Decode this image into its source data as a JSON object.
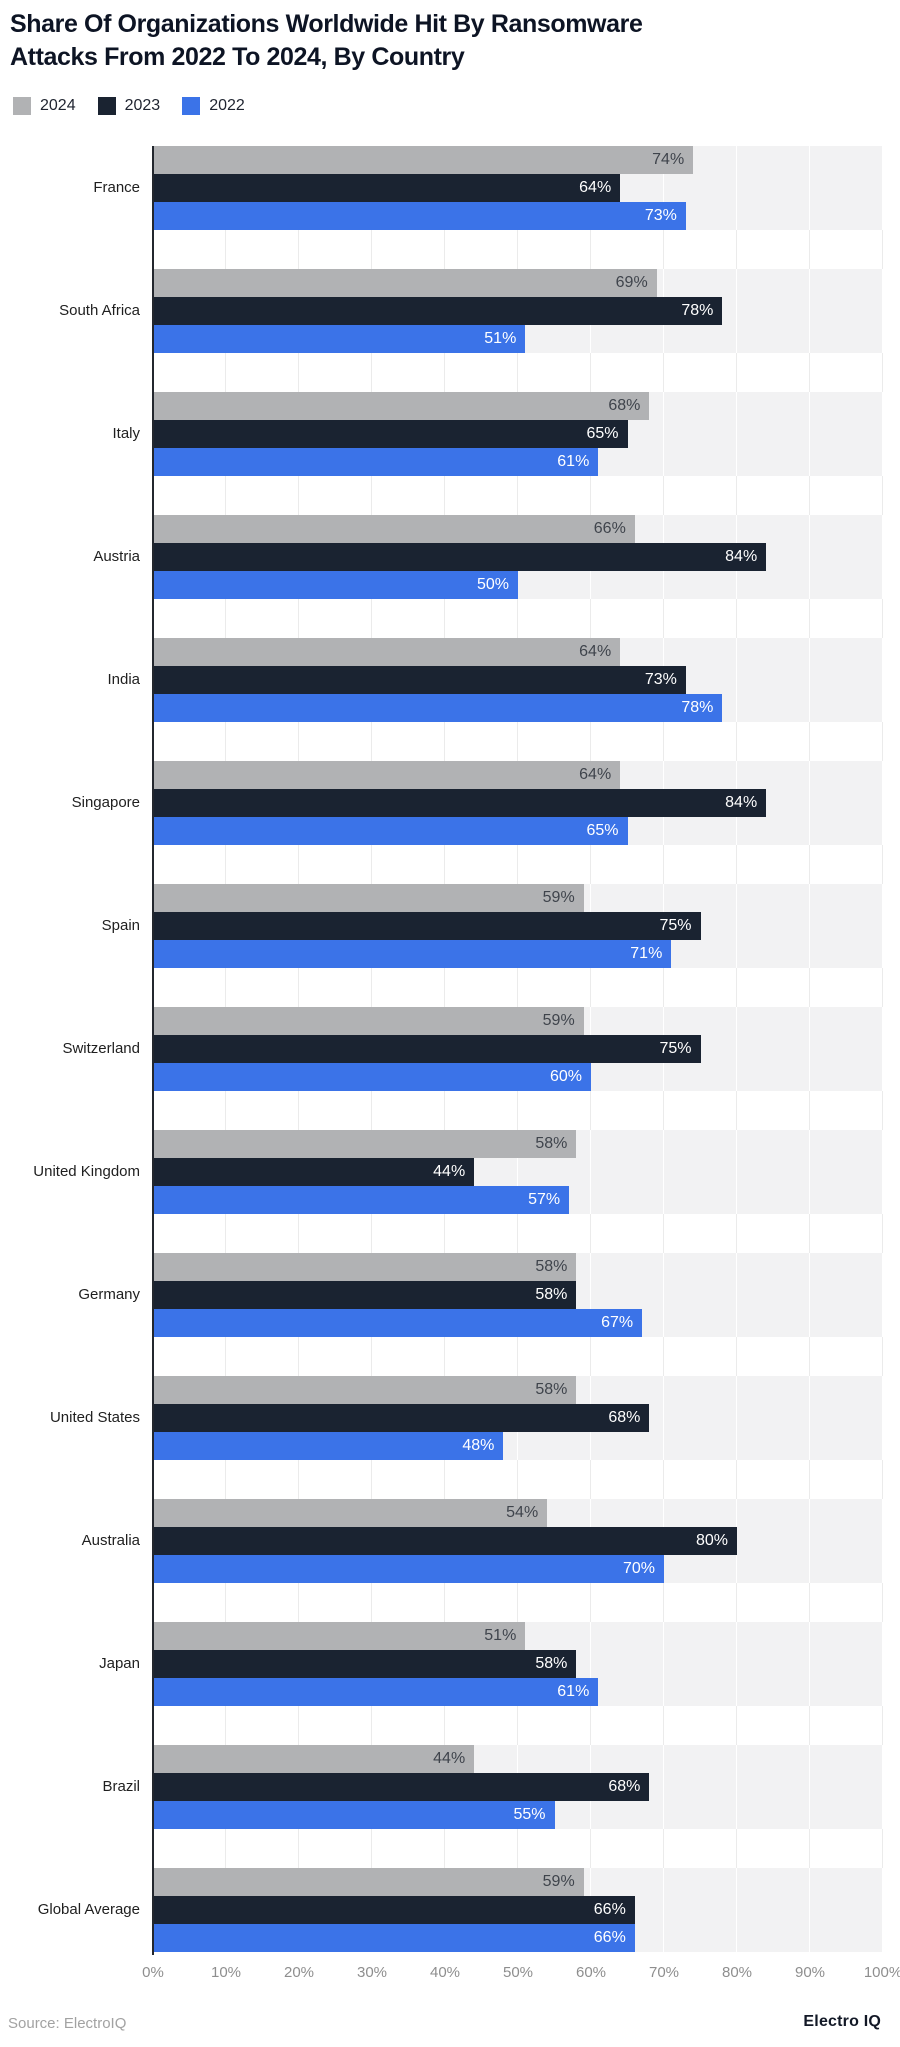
{
  "title_lines": [
    "Share Of Organizations Worldwide Hit By Ransomware",
    "Attacks From 2022 To 2024, By Country"
  ],
  "legend": [
    {
      "label": "2024",
      "color": "#b1b2b4"
    },
    {
      "label": "2023",
      "color": "#1a2331"
    },
    {
      "label": "2022",
      "color": "#3b73e8"
    }
  ],
  "chart_data": {
    "type": "bar",
    "orientation": "horizontal",
    "title": "Share Of Organizations Worldwide Hit By Ransomware Attacks From 2022 To 2024, By Country",
    "categories": [
      "France",
      "South Africa",
      "Italy",
      "Austria",
      "India",
      "Singapore",
      "Spain",
      "Switzerland",
      "United Kingdom",
      "Germany",
      "United States",
      "Australia",
      "Japan",
      "Brazil",
      "Global Average"
    ],
    "series": [
      {
        "name": "2024",
        "color": "#b1b2b4",
        "label_color": "#3f444c",
        "values": [
          74,
          69,
          68,
          66,
          64,
          64,
          59,
          59,
          58,
          58,
          58,
          54,
          51,
          44,
          59
        ]
      },
      {
        "name": "2023",
        "color": "#1a2331",
        "label_color": "#ffffff",
        "values": [
          64,
          78,
          65,
          84,
          73,
          84,
          75,
          75,
          44,
          58,
          68,
          80,
          58,
          68,
          66
        ]
      },
      {
        "name": "2022",
        "color": "#3b73e8",
        "label_color": "#ffffff",
        "values": [
          73,
          51,
          61,
          50,
          78,
          65,
          71,
          60,
          57,
          67,
          48,
          70,
          61,
          55,
          66
        ]
      }
    ],
    "value_suffix": "%",
    "x_ticks": [
      "0%",
      "10%",
      "20%",
      "30%",
      "40%",
      "50%",
      "60%",
      "70%",
      "80%",
      "90%",
      "100%"
    ],
    "xlim": [
      0,
      100
    ],
    "grid": "vertical",
    "legend_position": "top-left",
    "band_color": "#f2f2f3"
  },
  "source": "Source: ElectroIQ",
  "brand": "Electro IQ"
}
